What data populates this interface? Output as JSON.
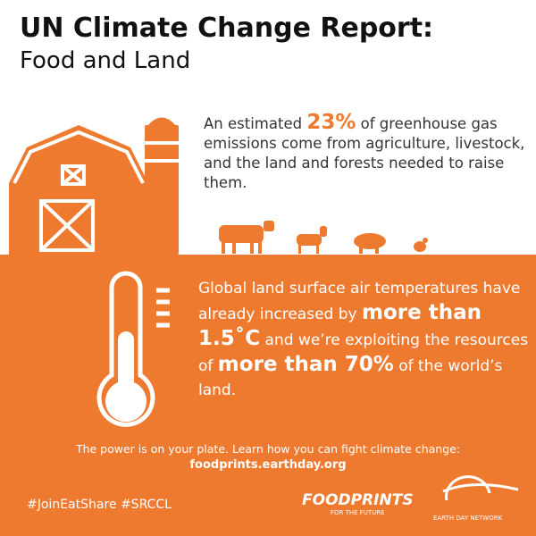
{
  "header": {
    "title_line1": "UN Climate Change Report:",
    "title_line2": "Food and Land"
  },
  "fact1": {
    "lead": "An estimated",
    "highlight": "23%",
    "rest": "of greenhouse gas emissions come from agriculture, livestock, and the land and forests needed to raise them."
  },
  "fact2": {
    "lead": "Global land surface air temperatures have already increased by",
    "highlight1": "more than 1.5˚C",
    "middle": "and we’re exploiting the resources of",
    "highlight2": "more than 70%",
    "rest": "of the world’s land."
  },
  "footer": {
    "message": "The power is on your plate. Learn how you can fight climate change:",
    "url": "foodprints.earthday.org",
    "hashtags": "#JoinEatShare #SRCCL"
  },
  "logos": {
    "foodprints": "FOODPRINTS",
    "foodprints_tagline": "FOR THE FUTURE",
    "earth_day": "EARTH DAY NETWORK"
  }
}
